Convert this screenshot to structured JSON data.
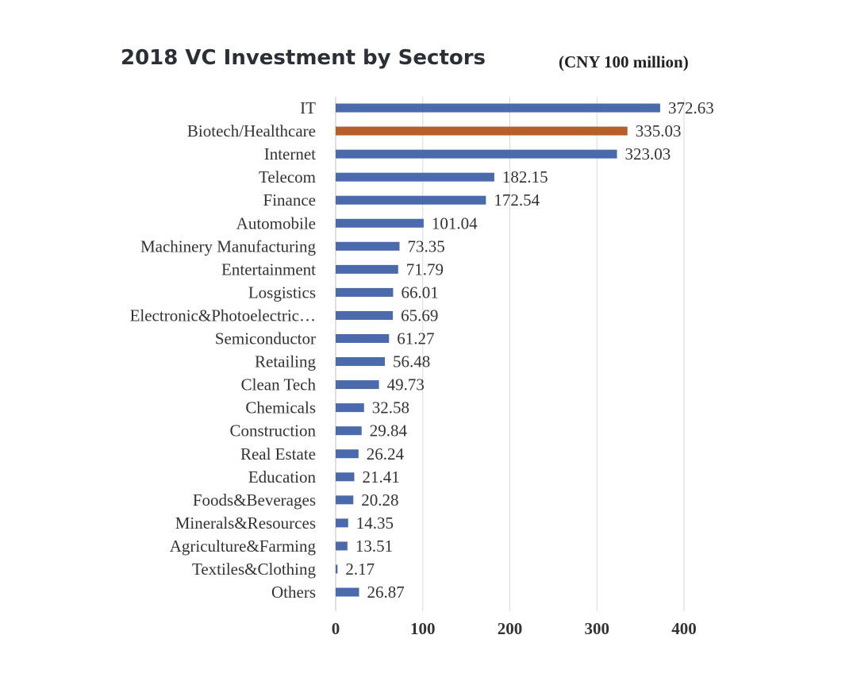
{
  "chart_data": {
    "type": "bar",
    "orientation": "horizontal",
    "title": "2018 VC Investment by Sectors",
    "unit": "(CNY 100 million)",
    "categories": [
      "IT",
      "Biotech/Healthcare",
      "Internet",
      "Telecom",
      "Finance",
      "Automobile",
      "Machinery Manufacturing",
      "Entertainment",
      "Losgistics",
      "Electronic&Photoelectric…",
      "Semiconductor",
      "Retailing",
      "Clean Tech",
      "Chemicals",
      "Construction",
      "Real Estate",
      "Education",
      "Foods&Beverages",
      "Minerals&Resources",
      "Agriculture&Farming",
      "Textiles&Clothing",
      "Others"
    ],
    "values": [
      372.63,
      335.03,
      323.03,
      182.15,
      172.54,
      101.04,
      73.35,
      71.79,
      66.01,
      65.69,
      61.27,
      56.48,
      49.73,
      32.58,
      29.84,
      26.24,
      21.41,
      20.28,
      14.35,
      13.51,
      2.17,
      26.87
    ],
    "value_labels": [
      "372.63",
      "335.03",
      "323.03",
      "182.15",
      "172.54",
      "101.04",
      "73.35",
      "71.79",
      "66.01",
      "65.69",
      "61.27",
      "56.48",
      "49.73",
      "32.58",
      "29.84",
      "26.24",
      "21.41",
      "20.28",
      "14.35",
      "13.51",
      "2.17",
      "26.87"
    ],
    "xlim": [
      0,
      400
    ],
    "xticks": [
      "0",
      "100",
      "200",
      "300",
      "400"
    ],
    "grid": true,
    "colors": {
      "default": "#4a6aab",
      "highlight": "#b65f28",
      "grid": "#d9d9d9"
    },
    "highlight_category": "Biotech/Healthcare"
  }
}
